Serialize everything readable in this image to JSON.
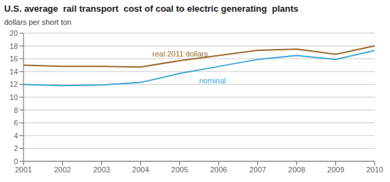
{
  "chart_data": {
    "type": "line",
    "title": "U.S. average  rail transport  cost of coal to electric generating  plants",
    "subtitle": "dollars per short ton",
    "x": [
      2001,
      2002,
      2003,
      2004,
      2005,
      2006,
      2007,
      2008,
      2009,
      2010
    ],
    "series": [
      {
        "color": "#9C6B2A",
        "values": [
          15.0,
          14.8,
          14.8,
          14.7,
          15.7,
          16.5,
          17.3,
          17.5,
          16.7,
          18.0
        ]
      },
      {
        "color": "#3EA8D8",
        "values": [
          12.0,
          11.8,
          11.9,
          12.3,
          13.7,
          14.8,
          15.9,
          16.5,
          15.9,
          17.3
        ]
      }
    ],
    "annotations": [
      {
        "text": "real 2011 dollars",
        "x": 2004.3,
        "y": 16.3,
        "color": "#9C6B2A"
      },
      {
        "text": "nominal",
        "x": 2005.5,
        "y": 13.0,
        "color": "#3EA8D8"
      }
    ],
    "xlim": [
      2001,
      2010
    ],
    "xticks": [
      2001,
      2002,
      2003,
      2004,
      2005,
      2006,
      2007,
      2008,
      2009,
      2010
    ],
    "ylim": [
      0,
      20
    ],
    "yticks": [
      0,
      2,
      4,
      6,
      8,
      10,
      12,
      14,
      16,
      18,
      20
    ],
    "grid": true
  }
}
